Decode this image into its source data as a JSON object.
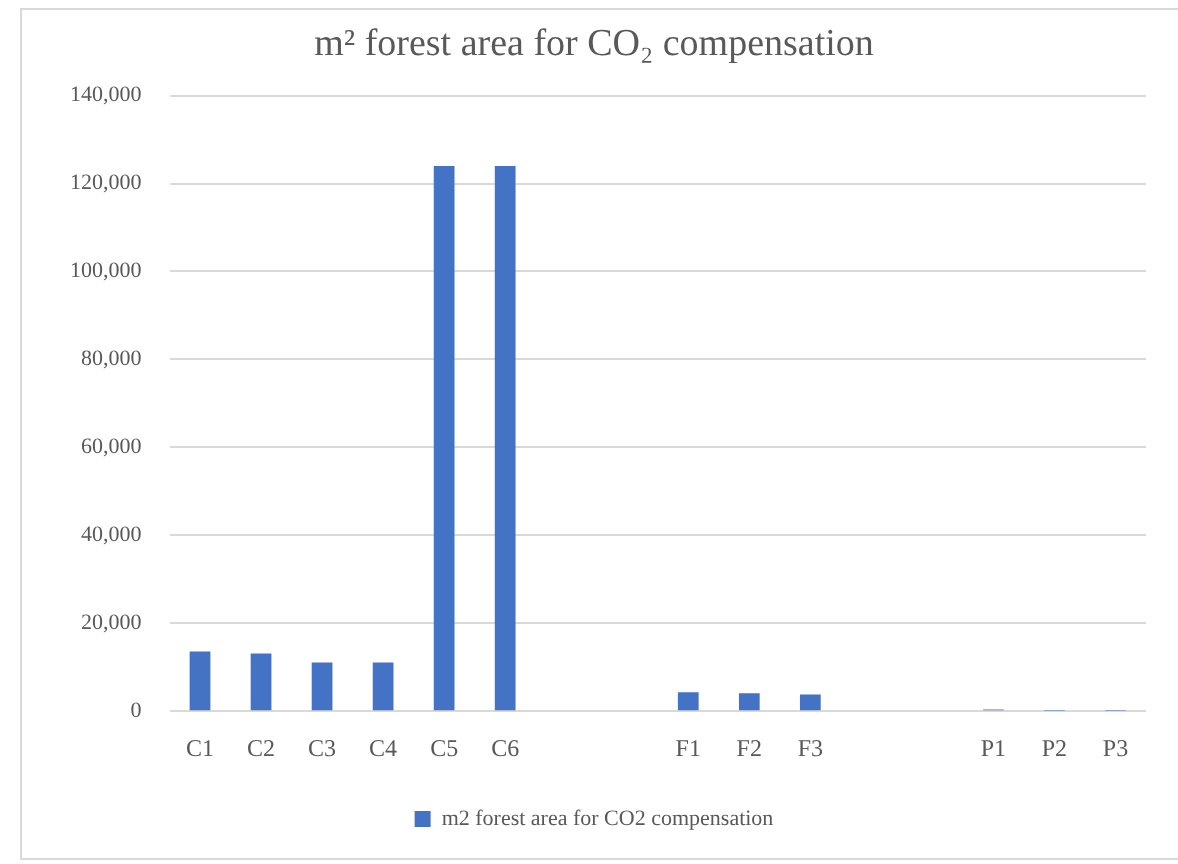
{
  "chart_data": {
    "type": "bar",
    "title": "m² forest area for CO₂ compensation",
    "categories": [
      "C1",
      "C2",
      "C3",
      "C4",
      "C5",
      "C6",
      null,
      null,
      "F1",
      "F2",
      "F3",
      null,
      null,
      "P1",
      "P2",
      "P3"
    ],
    "series": [
      {
        "name": "m2 forest area for CO2 compensation",
        "color": "#4472c4",
        "values": [
          13600,
          13100,
          11100,
          11100,
          124000,
          124000,
          null,
          null,
          4300,
          4100,
          3800,
          null,
          null,
          400,
          100,
          100
        ]
      }
    ],
    "ylim": [
      0,
      140000
    ],
    "yticks": [
      {
        "value": 0,
        "label": "0"
      },
      {
        "value": 20000,
        "label": "20,000"
      },
      {
        "value": 40000,
        "label": "40,000"
      },
      {
        "value": 60000,
        "label": "60,000"
      },
      {
        "value": 80000,
        "label": "80,000"
      },
      {
        "value": 100000,
        "label": "100,000"
      },
      {
        "value": 120000,
        "label": "120,000"
      },
      {
        "value": 140000,
        "label": "140,000"
      }
    ],
    "grid": "y",
    "legend": "bottom"
  }
}
